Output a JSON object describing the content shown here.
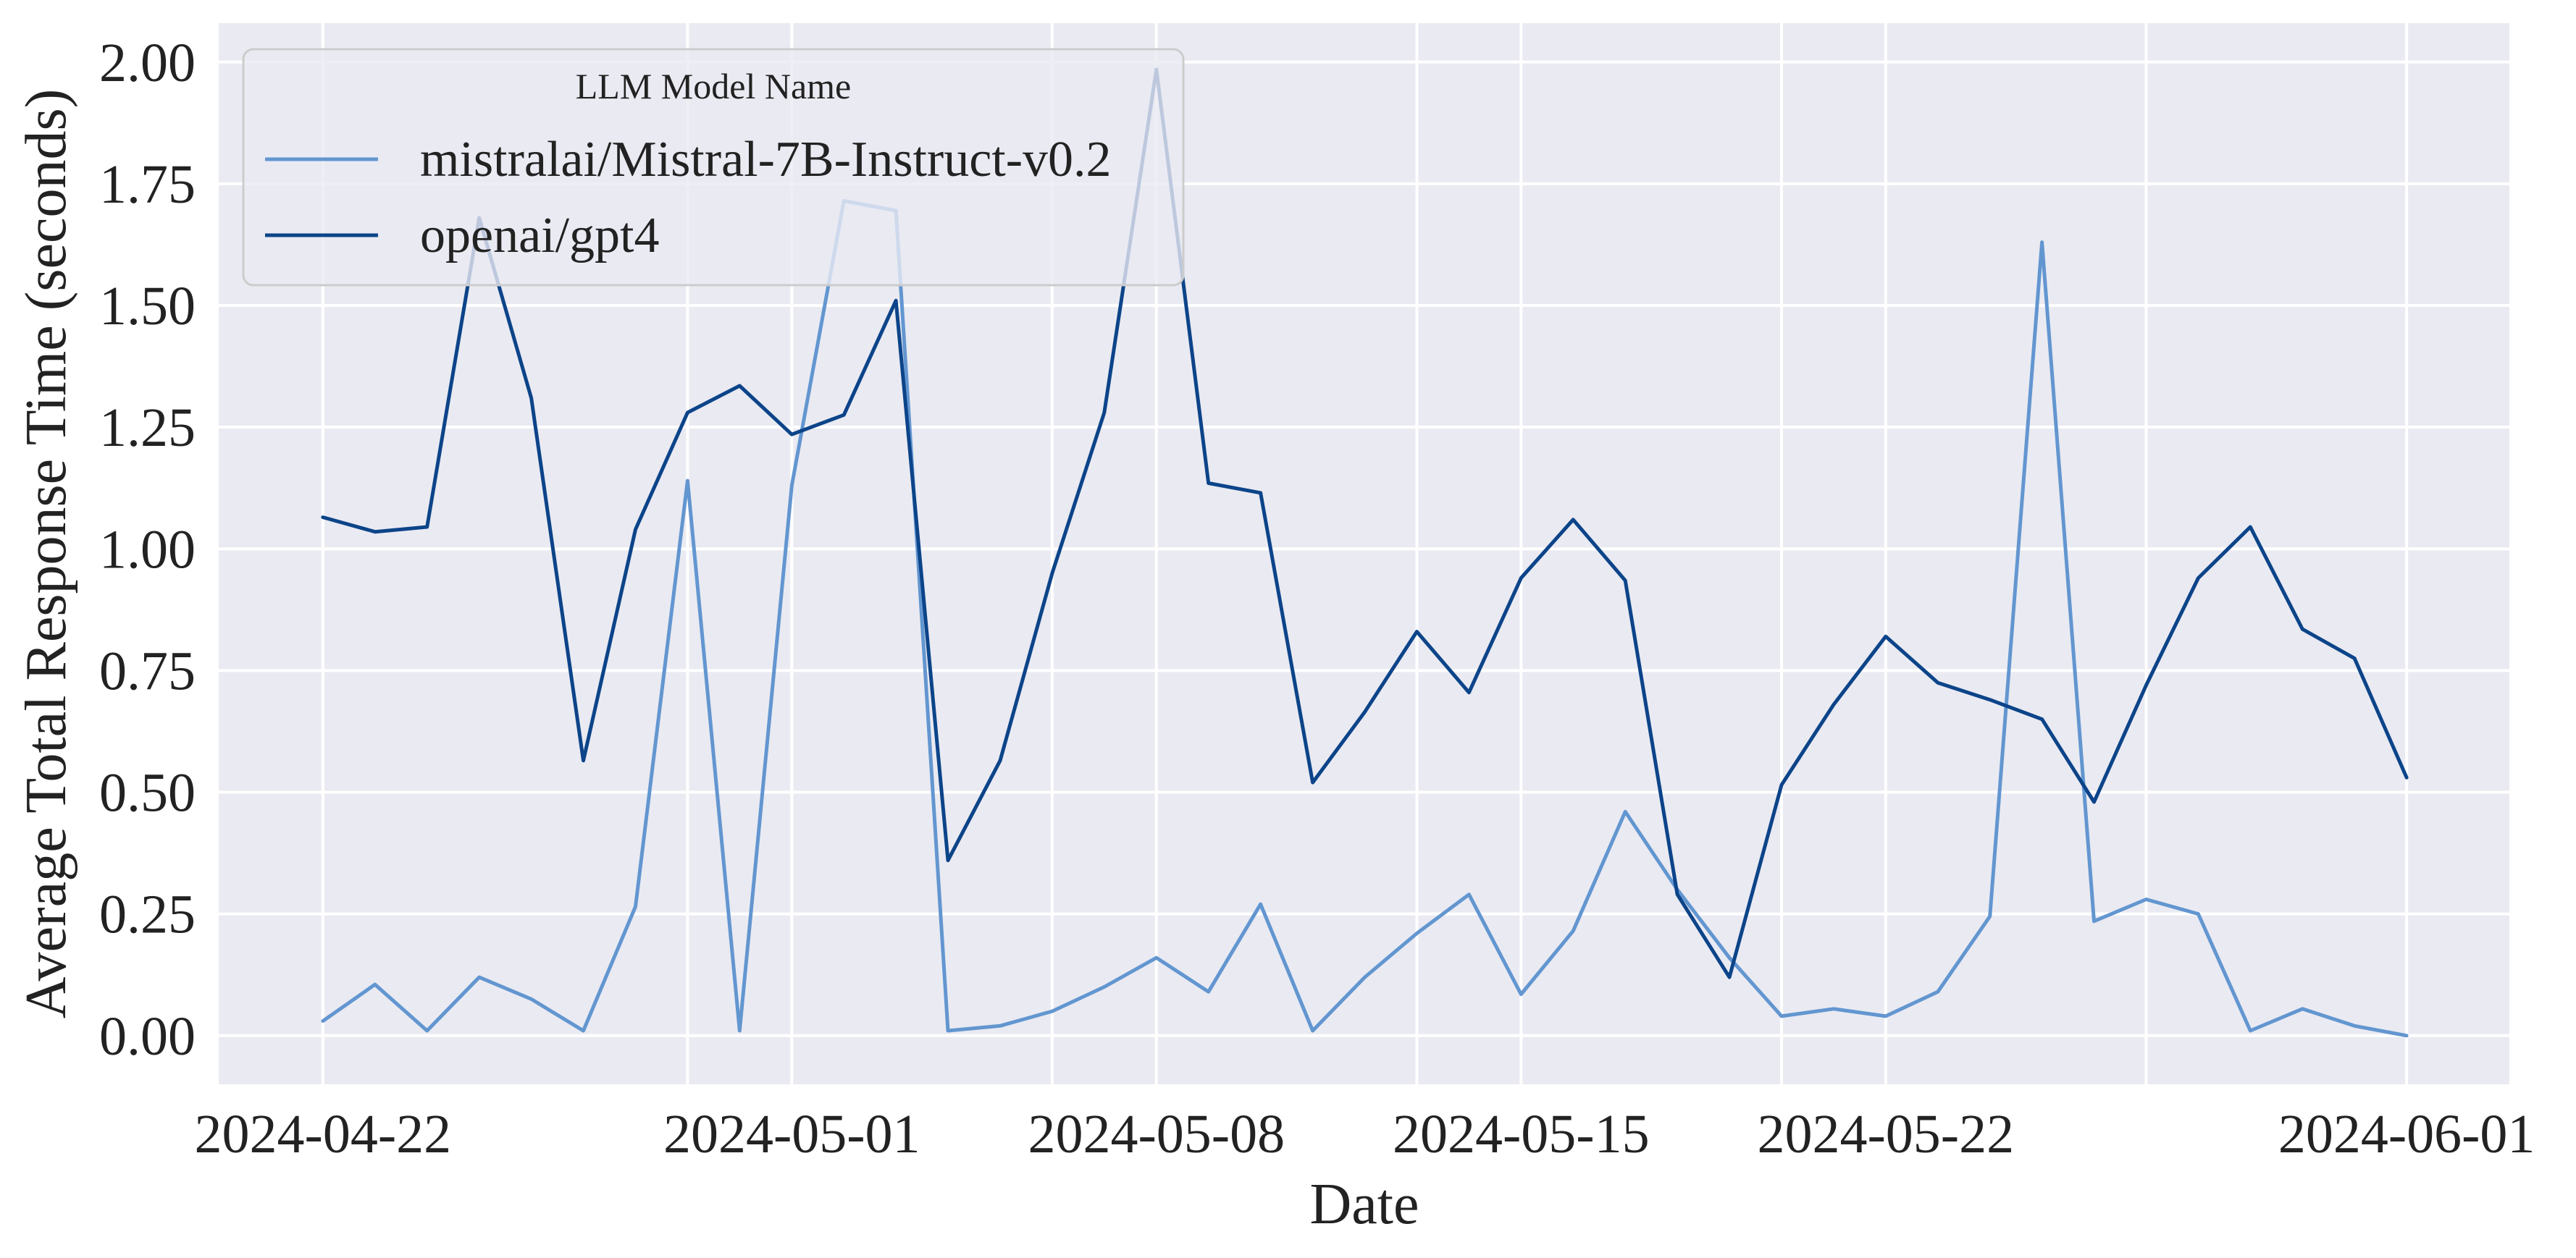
{
  "chart_data": {
    "type": "line",
    "xlabel": "Date",
    "ylabel": "Average Total Response Time (seconds)",
    "xlim": [
      "2024-04-20",
      "2024-06-03"
    ],
    "ylim": [
      -0.1,
      2.08
    ],
    "grid": true,
    "x_ticks": [
      "2024-04-22",
      "2024-05-01",
      "2024-05-08",
      "2024-05-15",
      "2024-05-22",
      "2024-06-01"
    ],
    "y_ticks": [
      "0.00",
      "0.25",
      "0.50",
      "0.75",
      "1.00",
      "1.25",
      "1.50",
      "1.75",
      "2.00"
    ],
    "legend": {
      "title": "LLM Model Name",
      "position": "top-left"
    },
    "x": [
      "2024-04-22",
      "2024-04-23",
      "2024-04-24",
      "2024-04-25",
      "2024-04-26",
      "2024-04-27",
      "2024-04-28",
      "2024-04-29",
      "2024-04-30",
      "2024-05-01",
      "2024-05-02",
      "2024-05-03",
      "2024-05-04",
      "2024-05-05",
      "2024-05-06",
      "2024-05-07",
      "2024-05-08",
      "2024-05-09",
      "2024-05-10",
      "2024-05-11",
      "2024-05-12",
      "2024-05-13",
      "2024-05-14",
      "2024-05-15",
      "2024-05-16",
      "2024-05-17",
      "2024-05-18",
      "2024-05-19",
      "2024-05-20",
      "2024-05-21",
      "2024-05-22",
      "2024-05-23",
      "2024-05-24",
      "2024-05-25",
      "2024-05-26",
      "2024-05-27",
      "2024-05-28",
      "2024-05-29",
      "2024-05-30",
      "2024-05-31",
      "2024-06-01"
    ],
    "series": [
      {
        "name": "mistralai/Mistral-7B-Instruct-v0.2",
        "color": "#6296d0",
        "values": [
          0.03,
          0.105,
          0.01,
          0.12,
          0.075,
          0.01,
          0.265,
          1.14,
          0.01,
          1.13,
          1.715,
          1.695,
          0.01,
          0.02,
          0.05,
          0.1,
          0.16,
          0.09,
          0.27,
          0.01,
          0.12,
          0.21,
          0.29,
          0.085,
          0.215,
          0.46,
          0.3,
          0.16,
          0.04,
          0.055,
          0.04,
          0.09,
          0.245,
          1.63,
          0.235,
          0.28,
          0.25,
          0.01,
          0.055,
          0.02,
          0.0
        ]
      },
      {
        "name": "openai/gpt4",
        "color": "#0c4489",
        "values": [
          1.065,
          1.035,
          1.045,
          1.68,
          1.31,
          0.565,
          1.04,
          1.28,
          1.335,
          1.235,
          1.275,
          1.51,
          0.36,
          0.565,
          0.95,
          1.28,
          1.985,
          1.135,
          1.115,
          0.52,
          0.665,
          0.83,
          0.705,
          0.94,
          1.06,
          0.935,
          0.29,
          0.12,
          0.515,
          0.68,
          0.82,
          0.725,
          0.69,
          0.65,
          0.48,
          0.72,
          0.94,
          1.045,
          0.835,
          0.775,
          0.53
        ]
      }
    ]
  }
}
